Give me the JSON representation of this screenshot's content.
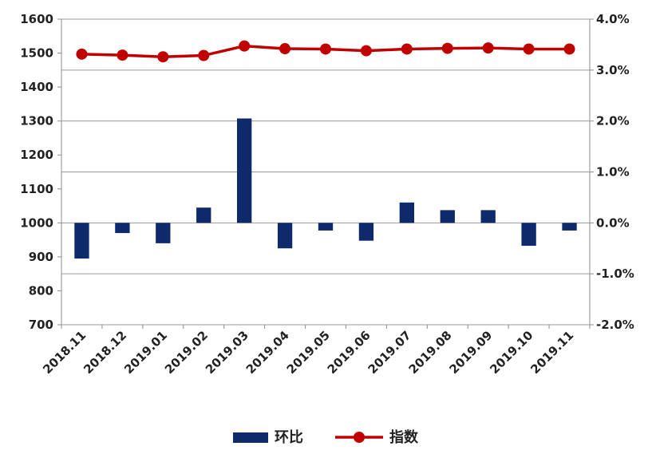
{
  "chart_data": {
    "type": "bar+line",
    "categories": [
      "2018.11",
      "2018.12",
      "2019.01",
      "2019.02",
      "2019.03",
      "2019.04",
      "2019.05",
      "2019.06",
      "2019.07",
      "2019.08",
      "2019.09",
      "2019.10",
      "2019.11"
    ],
    "series": [
      {
        "name": "环比",
        "type": "bar",
        "axis": "right",
        "color": "#0f2a6b",
        "values": [
          -0.7,
          -0.2,
          -0.4,
          0.3,
          2.05,
          -0.5,
          -0.15,
          -0.35,
          0.4,
          0.25,
          0.25,
          -0.45,
          -0.15
        ]
      },
      {
        "name": "指数",
        "type": "line",
        "axis": "left",
        "color": "#c00000",
        "values": [
          1497,
          1494,
          1489,
          1493,
          1521,
          1513,
          1512,
          1507,
          1512,
          1514,
          1515,
          1512,
          1512
        ]
      }
    ],
    "y_left": {
      "min": 700,
      "max": 1600,
      "ticks": [
        "700",
        "800",
        "900",
        "1000",
        "1100",
        "1200",
        "1300",
        "1400",
        "1500",
        "1600"
      ]
    },
    "y_right": {
      "min": -2.0,
      "max": 4.0,
      "ticks": [
        "-2.0%",
        "-1.0%",
        "0.0%",
        "1.0%",
        "2.0%",
        "3.0%",
        "4.0%"
      ]
    },
    "grid": "horizontal lines at right-axis ticks",
    "legend_position": "bottom"
  }
}
